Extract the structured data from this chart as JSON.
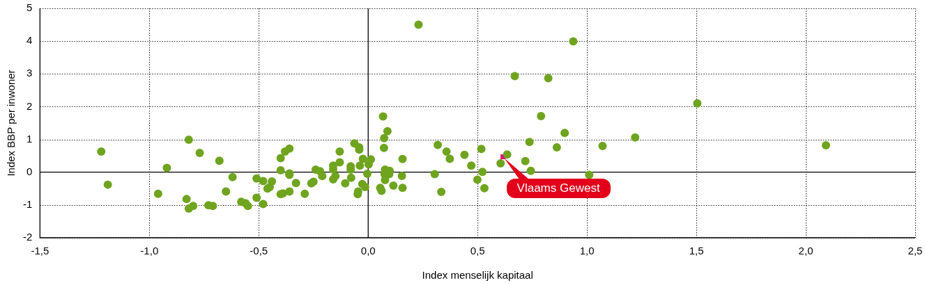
{
  "chart_data": {
    "type": "scatter",
    "xlabel": "Index menselijk kapitaal",
    "ylabel": "Index BBP per inwoner",
    "xlim": [
      -1.5,
      2.5
    ],
    "ylim": [
      -2,
      5
    ],
    "xticks": [
      {
        "value": -1.5,
        "label": "-1,5"
      },
      {
        "value": -1,
        "label": "-1,0"
      },
      {
        "value": -0.5,
        "label": "-0,5"
      },
      {
        "value": 0,
        "label": "0,0"
      },
      {
        "value": 0.5,
        "label": "0,5"
      },
      {
        "value": 1,
        "label": "1,0"
      },
      {
        "value": 1.5,
        "label": "1,5"
      },
      {
        "value": 2,
        "label": "2,0"
      },
      {
        "value": 2.5,
        "label": "2,5"
      }
    ],
    "yticks": [
      -2,
      -1,
      0,
      1,
      2,
      3,
      4,
      5
    ],
    "grid": true,
    "legend": false,
    "marker": "circle",
    "series": [
      {
        "color": "#6fa41f",
        "x": [
          -1.22,
          -1.19,
          -0.96,
          -0.92,
          -0.83,
          -0.82,
          -0.8,
          -0.82,
          -0.77,
          -0.73,
          -0.71,
          -0.68,
          -0.65,
          -0.62,
          -0.58,
          -0.56,
          -0.55,
          -0.51,
          -0.51,
          -0.48,
          -0.48,
          -0.46,
          -0.45,
          -0.44,
          -0.4,
          -0.4,
          -0.4,
          -0.39,
          -0.38,
          -0.36,
          -0.36,
          -0.36,
          -0.36,
          -0.33,
          -0.29,
          -0.26,
          -0.25,
          -0.24,
          -0.22,
          -0.21,
          -0.16,
          -0.16,
          -0.15,
          -0.16,
          -0.13,
          -0.13,
          -0.105,
          -0.08,
          -0.08,
          -0.078,
          -0.063,
          -0.041,
          -0.041,
          -0.038,
          -0.027,
          -0.024,
          -0.014,
          -0.046,
          -0.048,
          -0.004,
          0.002,
          0.012,
          0.055,
          0.061,
          0.068,
          0.073,
          0.072,
          0.077,
          0.098,
          0.075,
          0.096,
          0.077,
          0.088,
          0.115,
          0.157,
          0.154,
          0.157,
          0.23,
          0.304,
          0.318,
          0.334,
          0.358,
          0.373,
          0.44,
          0.471,
          0.499,
          0.517,
          0.522,
          0.531,
          0.605,
          0.635,
          0.67,
          0.718,
          0.737,
          0.743,
          0.79,
          0.823,
          0.862,
          0.898,
          0.937,
          1.01,
          1.071,
          1.22,
          1.504,
          2.092
        ],
        "values": [
          0.63,
          -0.38,
          -0.66,
          0.13,
          -0.82,
          -1.11,
          -1.03,
          0.99,
          0.59,
          -1.01,
          -1.03,
          0.35,
          -0.59,
          -0.15,
          -0.9,
          -0.95,
          -1.03,
          -0.19,
          -0.78,
          -0.27,
          -0.97,
          -0.5,
          -0.45,
          -0.28,
          0.43,
          0.06,
          -0.67,
          -0.65,
          0.63,
          -0.04,
          -0.59,
          0.72,
          -0.08,
          -0.33,
          -0.66,
          -0.34,
          -0.29,
          0.08,
          0.03,
          -0.12,
          0.2,
          0.09,
          -0.12,
          -0.22,
          0.63,
          0.3,
          -0.34,
          0.18,
          0.08,
          -0.17,
          0.88,
          0.76,
          0.69,
          0.2,
          -0.36,
          0.41,
          -0.45,
          -0.59,
          -0.67,
          -0.05,
          0.24,
          0.39,
          -0.48,
          -0.57,
          1.7,
          1.04,
          0.74,
          0.08,
          0.04,
          -0.06,
          -0.06,
          -0.24,
          1.25,
          -0.41,
          0.4,
          -0.11,
          -0.48,
          4.5,
          -0.06,
          0.83,
          -0.6,
          0.63,
          0.41,
          0.53,
          0.2,
          -0.23,
          0.71,
          0.01,
          -0.49,
          0.27,
          0.54,
          2.93,
          0.34,
          0.92,
          0.04,
          1.71,
          2.87,
          0.76,
          1.2,
          3.99,
          -0.08,
          0.8,
          1.06,
          2.1,
          0.82
        ]
      },
      {
        "name": "Vlaams Gewest",
        "color": "#e6007e",
        "marker": "square",
        "x": [
          0.616
        ],
        "values": [
          0.47
        ]
      }
    ]
  }
}
